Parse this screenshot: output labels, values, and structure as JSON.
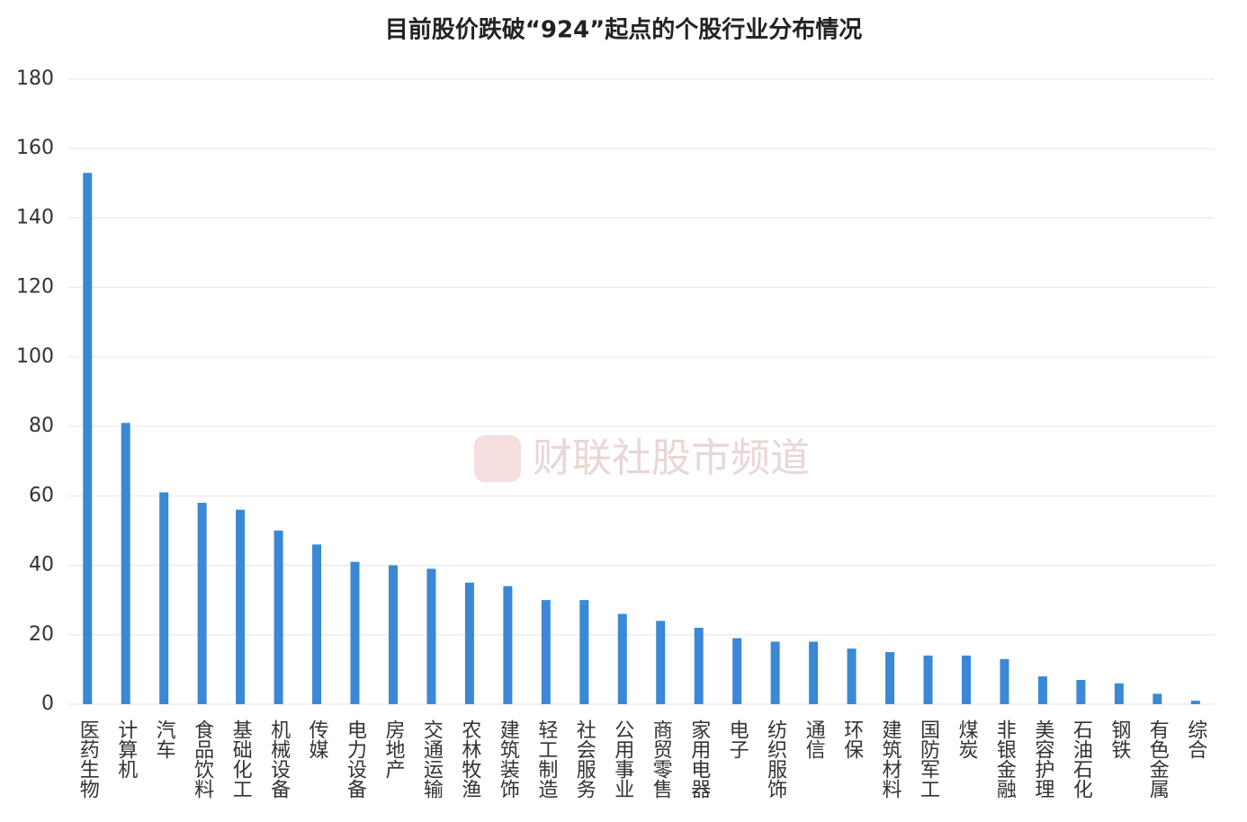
{
  "chart_data": {
    "type": "bar",
    "title": "目前股价跌破“924”起点的个股行业分布情况",
    "watermark": "财联社股市频道",
    "categories": [
      "医药生物",
      "计算机",
      "汽车",
      "食品饮料",
      "基础化工",
      "机械设备",
      "传媒",
      "电力设备",
      "房地产",
      "交通运输",
      "农林牧渔",
      "建筑装饰",
      "轻工制造",
      "社会服务",
      "公用事业",
      "商贸零售",
      "家用电器",
      "电子",
      "纺织服饰",
      "通信",
      "环保",
      "建筑材料",
      "国防军工",
      "煤炭",
      "非银金融",
      "美容护理",
      "石油石化",
      "钢铁",
      "有色金属",
      "综合"
    ],
    "values": [
      153,
      81,
      61,
      58,
      56,
      50,
      46,
      41,
      40,
      39,
      35,
      34,
      30,
      30,
      26,
      24,
      22,
      19,
      18,
      18,
      16,
      15,
      14,
      14,
      13,
      8,
      7,
      6,
      3,
      1
    ],
    "color": "#3a88d6",
    "ylim": [
      0,
      180
    ],
    "yticks": [
      0,
      20,
      40,
      60,
      80,
      100,
      120,
      140,
      160,
      180
    ],
    "grid": true
  }
}
